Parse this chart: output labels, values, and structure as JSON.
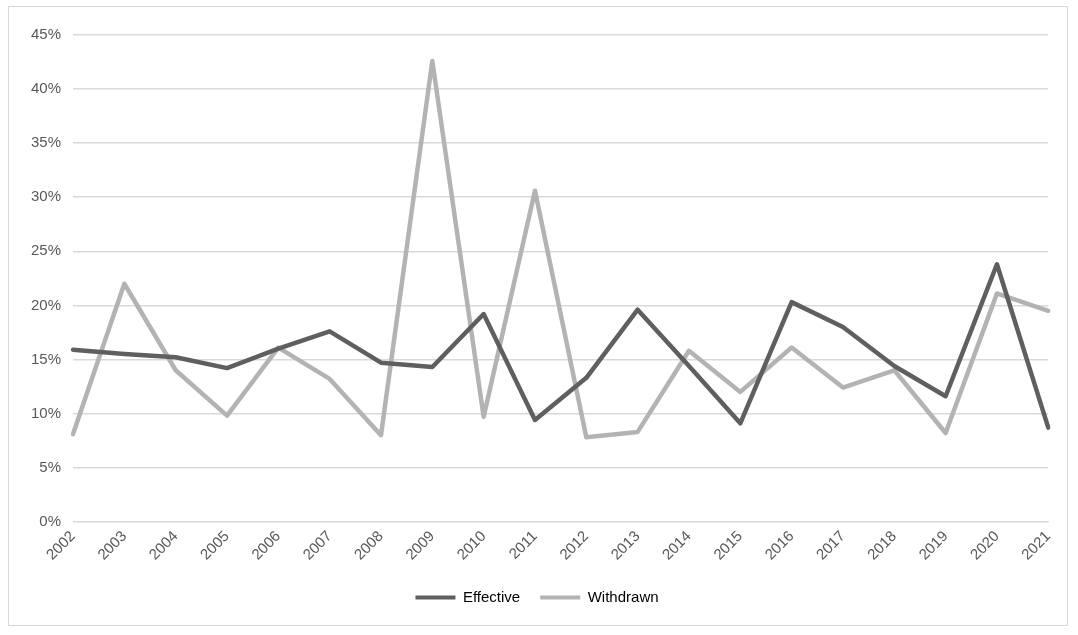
{
  "chart_data": {
    "type": "line",
    "categories": [
      "2002",
      "2003",
      "2004",
      "2005",
      "2006",
      "2007",
      "2008",
      "2009",
      "2010",
      "2011",
      "2012",
      "2013",
      "2014",
      "2015",
      "2016",
      "2017",
      "2018",
      "2019",
      "2020",
      "2021"
    ],
    "series": [
      {
        "name": "Effective",
        "color": "#5f5f5f",
        "values": [
          15.9,
          15.5,
          15.2,
          14.2,
          16,
          17.6,
          14.7,
          14.3,
          19.2,
          9.4,
          13.3,
          19.6,
          14.4,
          9.1,
          20.3,
          18,
          14.4,
          11.6,
          23.8,
          8.7
        ]
      },
      {
        "name": "Withdrawn",
        "color": "#b3b3b3",
        "values": [
          8.1,
          22,
          14,
          9.8,
          16.1,
          13.2,
          8,
          42.6,
          9.7,
          30.6,
          7.8,
          8.3,
          15.8,
          12,
          16.1,
          12.4,
          14,
          8.2,
          21.1,
          19.5
        ]
      }
    ],
    "ylim": [
      0,
      45
    ],
    "yticks": [
      {
        "value": 0,
        "label": "0%"
      },
      {
        "value": 5,
        "label": "5%"
      },
      {
        "value": 10,
        "label": "10%"
      },
      {
        "value": 15,
        "label": "15%"
      },
      {
        "value": 20,
        "label": "20%"
      },
      {
        "value": 25,
        "label": "25%"
      },
      {
        "value": 30,
        "label": "30%"
      },
      {
        "value": 35,
        "label": "35%"
      },
      {
        "value": 40,
        "label": "40%"
      },
      {
        "value": 45,
        "label": "45%"
      }
    ],
    "grid": "y",
    "legend": "bottom",
    "marker": "none",
    "line_style": "solid"
  }
}
